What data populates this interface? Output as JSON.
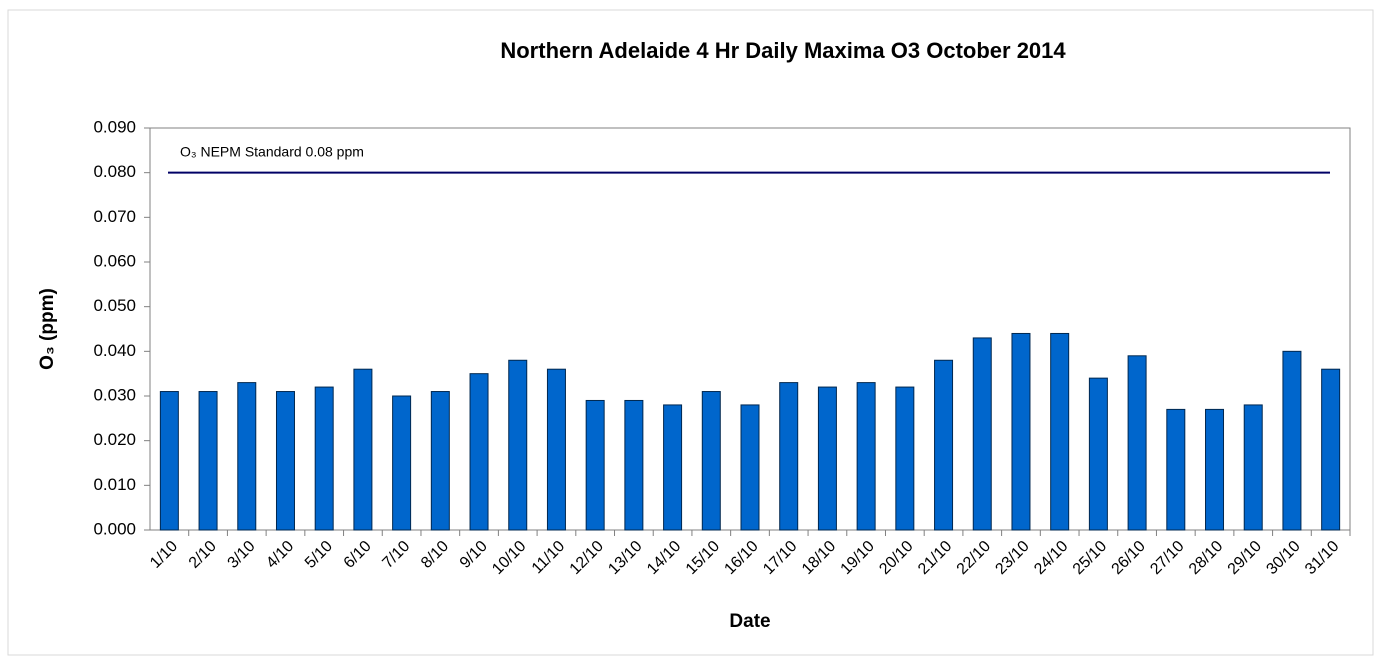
{
  "chart_data": {
    "type": "bar",
    "title": "Northern Adelaide 4 Hr Daily Maxima O3 October 2014",
    "x_label": "Date",
    "y_label": "O₃ (ppm)",
    "categories": [
      "1/10",
      "2/10",
      "3/10",
      "4/10",
      "5/10",
      "6/10",
      "7/10",
      "8/10",
      "9/10",
      "10/10",
      "11/10",
      "12/10",
      "13/10",
      "14/10",
      "15/10",
      "16/10",
      "17/10",
      "18/10",
      "19/10",
      "20/10",
      "21/10",
      "22/10",
      "23/10",
      "24/10",
      "25/10",
      "26/10",
      "27/10",
      "28/10",
      "29/10",
      "30/10",
      "31/10"
    ],
    "values": [
      0.031,
      0.031,
      0.033,
      0.031,
      0.032,
      0.036,
      0.03,
      0.031,
      0.035,
      0.038,
      0.036,
      0.029,
      0.029,
      0.028,
      0.031,
      0.028,
      0.033,
      0.032,
      0.033,
      0.032,
      0.038,
      0.043,
      0.044,
      0.044,
      0.034,
      0.039,
      0.027,
      0.027,
      0.028,
      0.04,
      0.036
    ],
    "color": "#0066cc",
    "ylim": [
      0,
      0.09
    ],
    "yticks": [
      {
        "value": 0,
        "label": "0.000"
      },
      {
        "value": 0.01,
        "label": "0.010"
      },
      {
        "value": 0.02,
        "label": "0.020"
      },
      {
        "value": 0.03,
        "label": "0.030"
      },
      {
        "value": 0.04,
        "label": "0.040"
      },
      {
        "value": 0.05,
        "label": "0.050"
      },
      {
        "value": 0.06,
        "label": "0.060"
      },
      {
        "value": 0.07,
        "label": "0.070"
      },
      {
        "value": 0.08,
        "label": "0.080"
      },
      {
        "value": 0.09,
        "label": "0.090"
      }
    ],
    "reference_line": {
      "value": 0.08,
      "label": "O₃ NEPM Standard 0.08 ppm",
      "color": "#000066"
    }
  }
}
